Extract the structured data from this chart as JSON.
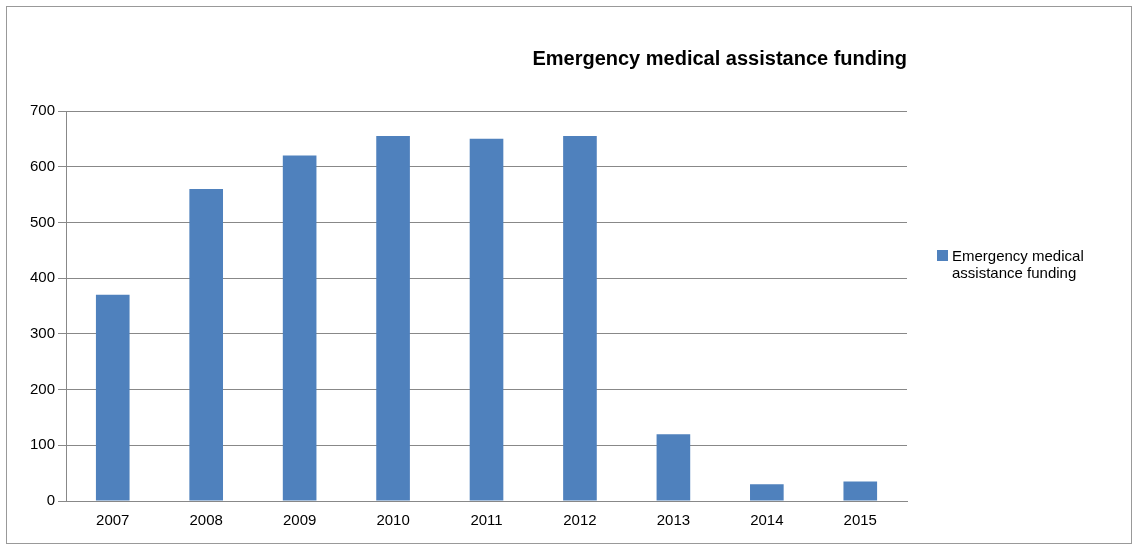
{
  "chart_data": {
    "type": "bar",
    "title": "Emergency medical assistance funding",
    "categories": [
      "2007",
      "2008",
      "2009",
      "2010",
      "2011",
      "2012",
      "2013",
      "2014",
      "2015"
    ],
    "series": [
      {
        "name": "Emergency medical assistance funding",
        "color": "#4f81bd",
        "values": [
          370,
          560,
          620,
          655,
          650,
          655,
          120,
          30,
          35
        ]
      }
    ],
    "ylim": [
      0,
      700
    ],
    "yticks": [
      0,
      100,
      200,
      300,
      400,
      500,
      600,
      700
    ],
    "grid": "y",
    "legend": "right"
  }
}
